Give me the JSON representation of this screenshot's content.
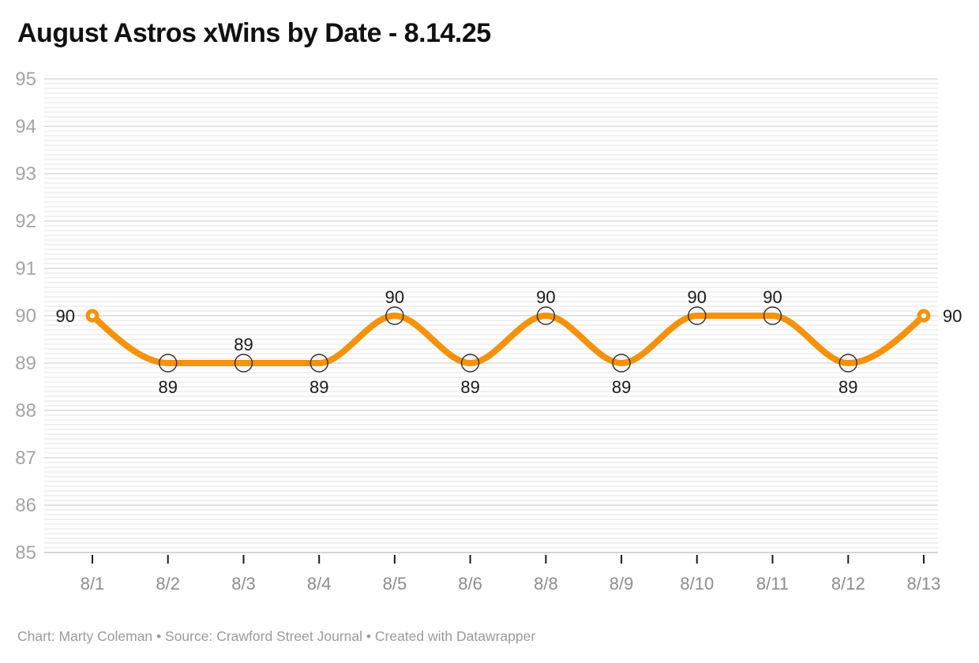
{
  "chart_data": {
    "type": "line",
    "title": "August Astros xWins by Date - 8.14.25",
    "x": [
      "8/1",
      "8/2",
      "8/3",
      "8/4",
      "8/5",
      "8/6",
      "8/8",
      "8/9",
      "8/10",
      "8/11",
      "8/12",
      "8/13"
    ],
    "values": [
      90,
      89,
      89,
      89,
      90,
      89,
      90,
      89,
      90,
      90,
      89,
      90
    ],
    "data_label_positions": [
      "left",
      "below",
      "above",
      "below",
      "above",
      "below",
      "above",
      "below",
      "above",
      "above",
      "below",
      "right"
    ],
    "xlabel": "",
    "ylabel": "",
    "ylim": [
      85,
      95
    ],
    "yticks": [
      95,
      94,
      93,
      92,
      91,
      90,
      89,
      88,
      87,
      86,
      85
    ],
    "minor_grid_step": 0.1,
    "grid": "horizontal-minor-and-major",
    "legend": "none",
    "curve": "monotone",
    "line_color": "#F4920B",
    "endpoint_marker": "filled-orange-dot-with-white-center",
    "mid_marker": "open-circle-dark-outline",
    "colors": {
      "title": "#111111",
      "data_label": "#1a1a1a",
      "y_tick_label": "#a4a4a4",
      "x_tick_label": "#8d8d8d",
      "minor_gridline": "#f1f1f1",
      "major_gridline": "#e3e3e3",
      "baseline": "#d4d4d4",
      "tick_mark": "#1a1a1a",
      "marker_outline": "#2f2f2f",
      "background": "#ffffff"
    }
  },
  "footer": {
    "chart_credit": "Chart: Marty Coleman",
    "source": "Source: Crawford Street Journal",
    "created_with": "Created with Datawrapper",
    "separator": " • "
  }
}
